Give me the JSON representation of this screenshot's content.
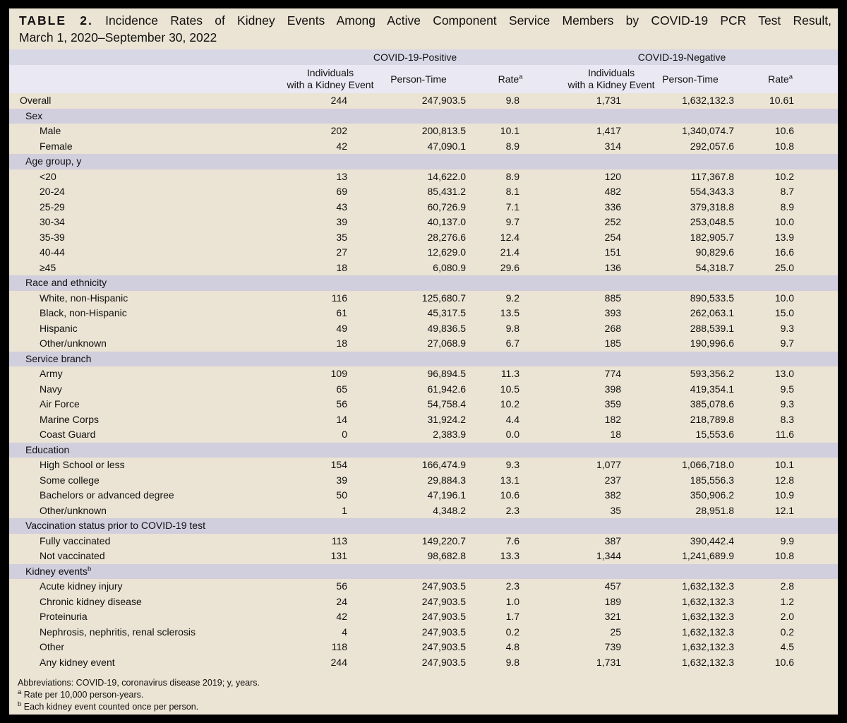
{
  "title": {
    "label": "TABLE 2.",
    "line1": "Incidence Rates of Kidney Events Among Active Component Service Members by COVID-19 PCR Test Result,",
    "line2": "March 1, 2020–September 30, 2022"
  },
  "table": {
    "group_positive": "COVID-19-Positive",
    "group_negative": "COVID-19-Negative",
    "col_individuals_l1": "Individuals",
    "col_individuals_l2": "with a Kidney Event",
    "col_person_time": "Person-Time",
    "col_rate": "Rate",
    "col_rate_sup": "a",
    "rows": [
      {
        "type": "data",
        "indent": 0,
        "label": "Overall",
        "values": [
          "244",
          "247,903.5",
          "9.8",
          "1,731",
          "1,632,132.3",
          "10.61"
        ]
      },
      {
        "type": "section",
        "label": "Sex"
      },
      {
        "type": "data",
        "indent": 1,
        "label": "Male",
        "values": [
          "202",
          "200,813.5",
          "10.1",
          "1,417",
          "1,340,074.7",
          "10.6"
        ]
      },
      {
        "type": "data",
        "indent": 1,
        "label": "Female",
        "values": [
          "42",
          "47,090.1",
          "8.9",
          "314",
          "292,057.6",
          "10.8"
        ]
      },
      {
        "type": "section",
        "label": "Age group, y"
      },
      {
        "type": "data",
        "indent": 1,
        "label": "<20",
        "values": [
          "13",
          "14,622.0",
          "8.9",
          "120",
          "117,367.8",
          "10.2"
        ]
      },
      {
        "type": "data",
        "indent": 1,
        "label": "20-24",
        "values": [
          "69",
          "85,431.2",
          "8.1",
          "482",
          "554,343.3",
          "8.7"
        ]
      },
      {
        "type": "data",
        "indent": 1,
        "label": "25-29",
        "values": [
          "43",
          "60,726.9",
          "7.1",
          "336",
          "379,318.8",
          "8.9"
        ]
      },
      {
        "type": "data",
        "indent": 1,
        "label": "30-34",
        "values": [
          "39",
          "40,137.0",
          "9.7",
          "252",
          "253,048.5",
          "10.0"
        ]
      },
      {
        "type": "data",
        "indent": 1,
        "label": "35-39",
        "values": [
          "35",
          "28,276.6",
          "12.4",
          "254",
          "182,905.7",
          "13.9"
        ]
      },
      {
        "type": "data",
        "indent": 1,
        "label": "40-44",
        "values": [
          "27",
          "12,629.0",
          "21.4",
          "151",
          "90,829.6",
          "16.6"
        ]
      },
      {
        "type": "data",
        "indent": 1,
        "label": "≥45",
        "values": [
          "18",
          "6,080.9",
          "29.6",
          "136",
          "54,318.7",
          "25.0"
        ]
      },
      {
        "type": "section",
        "label": "Race and ethnicity"
      },
      {
        "type": "data",
        "indent": 1,
        "label": "White, non-Hispanic",
        "values": [
          "116",
          "125,680.7",
          "9.2",
          "885",
          "890,533.5",
          "10.0"
        ]
      },
      {
        "type": "data",
        "indent": 1,
        "label": "Black, non-Hispanic",
        "values": [
          "61",
          "45,317.5",
          "13.5",
          "393",
          "262,063.1",
          "15.0"
        ]
      },
      {
        "type": "data",
        "indent": 1,
        "label": "Hispanic",
        "values": [
          "49",
          "49,836.5",
          "9.8",
          "268",
          "288,539.1",
          "9.3"
        ]
      },
      {
        "type": "data",
        "indent": 1,
        "label": "Other/unknown",
        "values": [
          "18",
          "27,068.9",
          "6.7",
          "185",
          "190,996.6",
          "9.7"
        ]
      },
      {
        "type": "section",
        "label": "Service branch"
      },
      {
        "type": "data",
        "indent": 1,
        "label": "Army",
        "values": [
          "109",
          "96,894.5",
          "11.3",
          "774",
          "593,356.2",
          "13.0"
        ]
      },
      {
        "type": "data",
        "indent": 1,
        "label": "Navy",
        "values": [
          "65",
          "61,942.6",
          "10.5",
          "398",
          "419,354.1",
          "9.5"
        ]
      },
      {
        "type": "data",
        "indent": 1,
        "label": "Air Force",
        "values": [
          "56",
          "54,758.4",
          "10.2",
          "359",
          "385,078.6",
          "9.3"
        ]
      },
      {
        "type": "data",
        "indent": 1,
        "label": "Marine Corps",
        "values": [
          "14",
          "31,924.2",
          "4.4",
          "182",
          "218,789.8",
          "8.3"
        ]
      },
      {
        "type": "data",
        "indent": 1,
        "label": "Coast Guard",
        "values": [
          "0",
          "2,383.9",
          "0.0",
          "18",
          "15,553.6",
          "11.6"
        ]
      },
      {
        "type": "section",
        "label": "Education"
      },
      {
        "type": "data",
        "indent": 1,
        "label": "High School or less",
        "values": [
          "154",
          "166,474.9",
          "9.3",
          "1,077",
          "1,066,718.0",
          "10.1"
        ]
      },
      {
        "type": "data",
        "indent": 1,
        "label": "Some college",
        "values": [
          "39",
          "29,884.3",
          "13.1",
          "237",
          "185,556.3",
          "12.8"
        ]
      },
      {
        "type": "data",
        "indent": 1,
        "label": "Bachelors or advanced degree",
        "values": [
          "50",
          "47,196.1",
          "10.6",
          "382",
          "350,906.2",
          "10.9"
        ]
      },
      {
        "type": "data",
        "indent": 1,
        "label": "Other/unknown",
        "values": [
          "1",
          "4,348.2",
          "2.3",
          "35",
          "28,951.8",
          "12.1"
        ]
      },
      {
        "type": "section",
        "label": "Vaccination status prior to COVID-19 test"
      },
      {
        "type": "data",
        "indent": 1,
        "label": "Fully vaccinated",
        "values": [
          "113",
          "149,220.7",
          "7.6",
          "387",
          "390,442.4",
          "9.9"
        ]
      },
      {
        "type": "data",
        "indent": 1,
        "label": "Not vaccinated",
        "values": [
          "131",
          "98,682.8",
          "13.3",
          "1,344",
          "1,241,689.9",
          "10.8"
        ]
      },
      {
        "type": "section",
        "label": "Kidney events",
        "sup": "b"
      },
      {
        "type": "data",
        "indent": 1,
        "label": "Acute kidney injury",
        "values": [
          "56",
          "247,903.5",
          "2.3",
          "457",
          "1,632,132.3",
          "2.8"
        ]
      },
      {
        "type": "data",
        "indent": 1,
        "label": "Chronic kidney disease",
        "values": [
          "24",
          "247,903.5",
          "1.0",
          "189",
          "1,632,132.3",
          "1.2"
        ]
      },
      {
        "type": "data",
        "indent": 1,
        "label": "Proteinuria",
        "values": [
          "42",
          "247,903.5",
          "1.7",
          "321",
          "1,632,132.3",
          "2.0"
        ]
      },
      {
        "type": "data",
        "indent": 1,
        "label": "Nephrosis, nephritis, renal sclerosis",
        "values": [
          "4",
          "247,903.5",
          "0.2",
          "25",
          "1,632,132.3",
          "0.2"
        ]
      },
      {
        "type": "data",
        "indent": 1,
        "label": "Other",
        "values": [
          "118",
          "247,903.5",
          "4.8",
          "739",
          "1,632,132.3",
          "4.5"
        ]
      },
      {
        "type": "data",
        "indent": 1,
        "label": "Any kidney event",
        "values": [
          "244",
          "247,903.5",
          "9.8",
          "1,731",
          "1,632,132.3",
          "10.6"
        ]
      }
    ]
  },
  "footnotes": {
    "abbreviations": "Abbreviations: COVID-19, coronavirus disease 2019; y, years.",
    "a_sup": "a",
    "a_text": "Rate per 10,000 person-years.",
    "b_sup": "b",
    "b_text": "Each kidney event counted once per person."
  },
  "colors": {
    "black": "#000000",
    "cream": "#ebe3d3",
    "band1": "#d8d7e6",
    "band2": "#e9e8f3",
    "section": "#d1cedd",
    "ink": "#111111"
  }
}
